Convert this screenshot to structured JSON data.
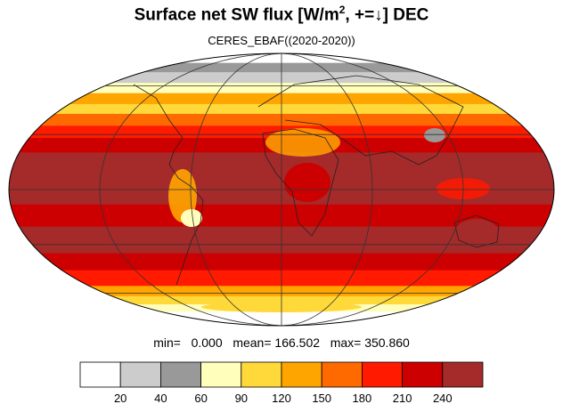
{
  "header": {
    "title_main": "Surface net SW flux [W/m",
    "title_sup": "2",
    "title_end": ", +=↓]  DEC",
    "subtitle": "CERES_EBAF((2020-2020))"
  },
  "stats": {
    "min_label": "min=",
    "min": "0.000",
    "mean_label": "mean=",
    "mean": "166.502",
    "max_label": "max=",
    "max": "350.860"
  },
  "colorbar": {
    "levels": [
      "20",
      "40",
      "60",
      "90",
      "120",
      "150",
      "180",
      "210",
      "240"
    ],
    "colors": [
      "#ffffff",
      "#cccccc",
      "#999999",
      "#ffffbb",
      "#ffd83a",
      "#ffa500",
      "#ff6a00",
      "#ff1a00",
      "#cc0000",
      "#a52a2a"
    ]
  },
  "map": {
    "projection": "mollweide",
    "central_longitude": 0,
    "graticule_lon_step": 60,
    "graticule_lat_step": 30,
    "band_lat_bounds": [
      90,
      78,
      70,
      62,
      55,
      48,
      42,
      35,
      28,
      20,
      -8,
      -20,
      -35,
      -45,
      -55,
      -62,
      -68,
      -74,
      -90
    ],
    "band_color_index": [
      0,
      2,
      1,
      3,
      5,
      4,
      6,
      7,
      8,
      9,
      8,
      9,
      8,
      7,
      5,
      4,
      3,
      0
    ]
  }
}
